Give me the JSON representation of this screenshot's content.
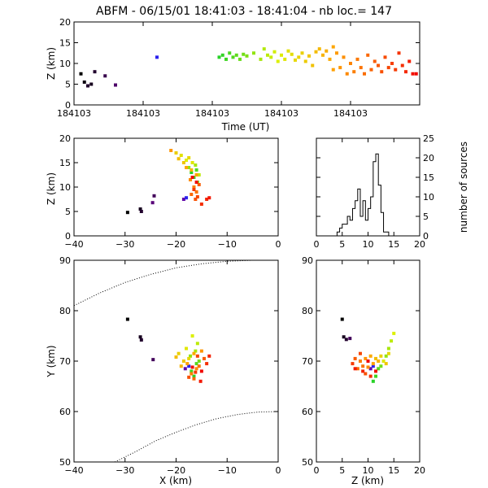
{
  "title": "ABFM - 06/15/01 18:41:03 - 18:41:04 - nb loc.=     147",
  "chart_data": [
    {
      "id": "time-panel",
      "type": "scatter",
      "xlabel": "Time (UT)",
      "ylabel": "Z (km)",
      "xlim": [
        0,
        1
      ],
      "ylim": [
        0,
        20
      ],
      "xticks": [
        0,
        0.2,
        0.4,
        0.6,
        0.8
      ],
      "xtick_labels": [
        "184103",
        "184103",
        "184103",
        "184103",
        "184103"
      ],
      "yticks": [
        0,
        5,
        10,
        15,
        20
      ],
      "ytick_labels": [
        "0",
        "5",
        "10",
        "15",
        "20"
      ],
      "color_by": "time",
      "points": [
        {
          "x": 0.02,
          "y": 7.5,
          "t": 0.0
        },
        {
          "x": 0.03,
          "y": 5.5,
          "t": 0.01
        },
        {
          "x": 0.05,
          "y": 5.0,
          "t": 0.02
        },
        {
          "x": 0.06,
          "y": 8.0,
          "t": 0.03
        },
        {
          "x": 0.04,
          "y": 4.6,
          "t": 0.03
        },
        {
          "x": 0.09,
          "y": 7.0,
          "t": 0.05
        },
        {
          "x": 0.12,
          "y": 4.8,
          "t": 0.07
        },
        {
          "x": 0.24,
          "y": 11.5,
          "t": 0.2
        },
        {
          "x": 0.42,
          "y": 11.5,
          "t": 0.38
        },
        {
          "x": 0.43,
          "y": 12.0,
          "t": 0.39
        },
        {
          "x": 0.44,
          "y": 11.0,
          "t": 0.4
        },
        {
          "x": 0.45,
          "y": 12.5,
          "t": 0.41
        },
        {
          "x": 0.46,
          "y": 11.5,
          "t": 0.42
        },
        {
          "x": 0.47,
          "y": 12.0,
          "t": 0.43
        },
        {
          "x": 0.48,
          "y": 11.0,
          "t": 0.44
        },
        {
          "x": 0.49,
          "y": 12.2,
          "t": 0.45
        },
        {
          "x": 0.5,
          "y": 11.8,
          "t": 0.46
        },
        {
          "x": 0.52,
          "y": 12.5,
          "t": 0.48
        },
        {
          "x": 0.54,
          "y": 11.0,
          "t": 0.5
        },
        {
          "x": 0.55,
          "y": 13.5,
          "t": 0.51
        },
        {
          "x": 0.56,
          "y": 12.0,
          "t": 0.52
        },
        {
          "x": 0.57,
          "y": 11.5,
          "t": 0.53
        },
        {
          "x": 0.58,
          "y": 12.8,
          "t": 0.54
        },
        {
          "x": 0.59,
          "y": 10.5,
          "t": 0.55
        },
        {
          "x": 0.6,
          "y": 12.0,
          "t": 0.56
        },
        {
          "x": 0.61,
          "y": 11.0,
          "t": 0.57
        },
        {
          "x": 0.62,
          "y": 13.0,
          "t": 0.58
        },
        {
          "x": 0.63,
          "y": 12.2,
          "t": 0.59
        },
        {
          "x": 0.64,
          "y": 10.8,
          "t": 0.6
        },
        {
          "x": 0.65,
          "y": 11.5,
          "t": 0.61
        },
        {
          "x": 0.66,
          "y": 12.5,
          "t": 0.62
        },
        {
          "x": 0.67,
          "y": 10.5,
          "t": 0.63
        },
        {
          "x": 0.68,
          "y": 11.8,
          "t": 0.64
        },
        {
          "x": 0.69,
          "y": 9.5,
          "t": 0.65
        },
        {
          "x": 0.7,
          "y": 12.8,
          "t": 0.66
        },
        {
          "x": 0.71,
          "y": 13.5,
          "t": 0.67
        },
        {
          "x": 0.72,
          "y": 12.0,
          "t": 0.68
        },
        {
          "x": 0.73,
          "y": 13.0,
          "t": 0.69
        },
        {
          "x": 0.74,
          "y": 11.0,
          "t": 0.7
        },
        {
          "x": 0.75,
          "y": 14.0,
          "t": 0.71
        },
        {
          "x": 0.75,
          "y": 8.5,
          "t": 0.72
        },
        {
          "x": 0.76,
          "y": 12.5,
          "t": 0.73
        },
        {
          "x": 0.77,
          "y": 9.0,
          "t": 0.74
        },
        {
          "x": 0.78,
          "y": 11.5,
          "t": 0.75
        },
        {
          "x": 0.79,
          "y": 7.5,
          "t": 0.76
        },
        {
          "x": 0.8,
          "y": 10.0,
          "t": 0.77
        },
        {
          "x": 0.81,
          "y": 8.0,
          "t": 0.78
        },
        {
          "x": 0.82,
          "y": 11.0,
          "t": 0.79
        },
        {
          "x": 0.83,
          "y": 9.0,
          "t": 0.8
        },
        {
          "x": 0.84,
          "y": 7.5,
          "t": 0.81
        },
        {
          "x": 0.85,
          "y": 12.0,
          "t": 0.82
        },
        {
          "x": 0.86,
          "y": 8.5,
          "t": 0.83
        },
        {
          "x": 0.87,
          "y": 10.5,
          "t": 0.84
        },
        {
          "x": 0.88,
          "y": 9.5,
          "t": 0.85
        },
        {
          "x": 0.89,
          "y": 8.0,
          "t": 0.86
        },
        {
          "x": 0.9,
          "y": 11.5,
          "t": 0.87
        },
        {
          "x": 0.91,
          "y": 9.0,
          "t": 0.88
        },
        {
          "x": 0.92,
          "y": 10.0,
          "t": 0.89
        },
        {
          "x": 0.93,
          "y": 8.5,
          "t": 0.9
        },
        {
          "x": 0.94,
          "y": 12.5,
          "t": 0.91
        },
        {
          "x": 0.95,
          "y": 9.5,
          "t": 0.92
        },
        {
          "x": 0.96,
          "y": 8.0,
          "t": 0.93
        },
        {
          "x": 0.97,
          "y": 10.5,
          "t": 0.95
        },
        {
          "x": 0.98,
          "y": 7.5,
          "t": 0.97
        },
        {
          "x": 0.99,
          "y": 7.5,
          "t": 0.99
        }
      ]
    },
    {
      "id": "xz-panel",
      "type": "scatter",
      "xlabel": "",
      "ylabel": "Z (km)",
      "xlim": [
        -40,
        0
      ],
      "ylim": [
        0,
        20
      ],
      "xticks": [
        -40,
        -30,
        -20,
        -10,
        0
      ],
      "xtick_labels": [
        "−40",
        "−30",
        "−20",
        "−10",
        "0"
      ],
      "yticks": [
        0,
        5,
        10,
        15,
        20
      ],
      "ytick_labels": [
        "0",
        "5",
        "10",
        "15",
        "20"
      ],
      "points": [
        {
          "x": -29.5,
          "y": 4.8,
          "t": 0.0
        },
        {
          "x": -27.0,
          "y": 5.5,
          "t": 0.02
        },
        {
          "x": -26.8,
          "y": 5.0,
          "t": 0.03
        },
        {
          "x": -24.3,
          "y": 8.2,
          "t": 0.06
        },
        {
          "x": -24.6,
          "y": 6.8,
          "t": 0.08
        },
        {
          "x": -18.5,
          "y": 7.5,
          "t": 0.12
        },
        {
          "x": -18.0,
          "y": 7.8,
          "t": 0.2
        },
        {
          "x": -17.0,
          "y": 13.0,
          "t": 0.38
        },
        {
          "x": -16.5,
          "y": 12.0,
          "t": 0.4
        },
        {
          "x": -16.0,
          "y": 13.5,
          "t": 0.42
        },
        {
          "x": -15.8,
          "y": 11.0,
          "t": 0.45
        },
        {
          "x": -17.5,
          "y": 14.0,
          "t": 0.48
        },
        {
          "x": -16.2,
          "y": 14.5,
          "t": 0.5
        },
        {
          "x": -15.5,
          "y": 12.5,
          "t": 0.52
        },
        {
          "x": -18.0,
          "y": 15.5,
          "t": 0.55
        },
        {
          "x": -16.8,
          "y": 15.0,
          "t": 0.57
        },
        {
          "x": -19.0,
          "y": 16.5,
          "t": 0.58
        },
        {
          "x": -17.5,
          "y": 16.0,
          "t": 0.6
        },
        {
          "x": -20.0,
          "y": 17.0,
          "t": 0.62
        },
        {
          "x": -18.5,
          "y": 15.0,
          "t": 0.64
        },
        {
          "x": -19.5,
          "y": 15.8,
          "t": 0.66
        },
        {
          "x": -17.0,
          "y": 13.5,
          "t": 0.68
        },
        {
          "x": -18.0,
          "y": 14.0,
          "t": 0.7
        },
        {
          "x": -16.0,
          "y": 12.5,
          "t": 0.72
        },
        {
          "x": -21.0,
          "y": 17.5,
          "t": 0.74
        },
        {
          "x": -17.2,
          "y": 11.5,
          "t": 0.76
        },
        {
          "x": -16.5,
          "y": 10.0,
          "t": 0.78
        },
        {
          "x": -16.0,
          "y": 9.0,
          "t": 0.8
        },
        {
          "x": -17.0,
          "y": 8.5,
          "t": 0.82
        },
        {
          "x": -15.5,
          "y": 10.5,
          "t": 0.84
        },
        {
          "x": -16.2,
          "y": 7.5,
          "t": 0.86
        },
        {
          "x": -15.8,
          "y": 8.0,
          "t": 0.88
        },
        {
          "x": -16.5,
          "y": 9.5,
          "t": 0.9
        },
        {
          "x": -15.0,
          "y": 6.5,
          "t": 0.92
        },
        {
          "x": -14.0,
          "y": 7.5,
          "t": 0.94
        },
        {
          "x": -13.5,
          "y": 7.8,
          "t": 0.96
        },
        {
          "x": -16.0,
          "y": 11.0,
          "t": 0.98
        },
        {
          "x": -16.8,
          "y": 12.0,
          "t": 0.99
        }
      ]
    },
    {
      "id": "histogram-panel",
      "type": "bar",
      "xlabel": "",
      "ylabel": "number of sources",
      "xlim": [
        0,
        20
      ],
      "ylim": [
        0,
        25
      ],
      "xticks": [
        0,
        5,
        10,
        15,
        20
      ],
      "xtick_labels": [
        "0",
        "5",
        "10",
        "15",
        "20"
      ],
      "yticks": [
        0,
        5,
        10,
        15,
        20,
        25
      ],
      "ytick_labels": [
        "0",
        "5",
        "10",
        "15",
        "20",
        "25"
      ],
      "bin_edges": [
        4,
        4.5,
        5,
        5.5,
        6,
        6.5,
        7,
        7.5,
        8,
        8.5,
        9,
        9.5,
        10,
        10.5,
        11,
        11.5,
        12,
        12.5,
        13,
        13.5,
        14
      ],
      "counts": [
        1,
        2,
        3,
        3,
        5,
        4,
        7,
        9,
        12,
        5,
        9,
        4,
        7,
        10,
        19,
        21,
        13,
        6,
        1,
        1
      ]
    },
    {
      "id": "xy-panel",
      "type": "scatter",
      "xlabel": "X (km)",
      "ylabel": "Y (km)",
      "xlim": [
        -40,
        0
      ],
      "ylim": [
        50,
        90
      ],
      "xticks": [
        -40,
        -30,
        -20,
        -10,
        0
      ],
      "xtick_labels": [
        "−40",
        "−30",
        "−20",
        "−10",
        "0"
      ],
      "yticks": [
        50,
        60,
        70,
        80,
        90
      ],
      "ytick_labels": [
        "50",
        "60",
        "70",
        "80",
        "90"
      ],
      "reference_curves": [
        {
          "name": "upper",
          "x": [
            -40,
            -35,
            -30,
            -25,
            -20,
            -15,
            -10,
            -5,
            0
          ],
          "y": [
            81,
            83.5,
            85.6,
            87.2,
            88.5,
            89.3,
            89.8,
            90,
            90
          ]
        },
        {
          "name": "lower",
          "x": [
            -32,
            -28,
            -24,
            -20,
            -16,
            -12,
            -8,
            -4,
            0
          ],
          "y": [
            50,
            52,
            54.2,
            55.9,
            57.4,
            58.6,
            59.4,
            59.9,
            60
          ]
        }
      ],
      "points": [
        {
          "x": -29.5,
          "y": 78.3,
          "t": 0.0
        },
        {
          "x": -27.0,
          "y": 74.8,
          "t": 0.02
        },
        {
          "x": -26.8,
          "y": 74.2,
          "t": 0.03
        },
        {
          "x": -24.5,
          "y": 70.3,
          "t": 0.06
        },
        {
          "x": -18.2,
          "y": 68.5,
          "t": 0.12
        },
        {
          "x": -17.5,
          "y": 69.0,
          "t": 0.2
        },
        {
          "x": -16.5,
          "y": 67.0,
          "t": 0.38
        },
        {
          "x": -17.0,
          "y": 68.0,
          "t": 0.4
        },
        {
          "x": -16.0,
          "y": 69.5,
          "t": 0.42
        },
        {
          "x": -15.5,
          "y": 70.0,
          "t": 0.45
        },
        {
          "x": -17.2,
          "y": 71.0,
          "t": 0.48
        },
        {
          "x": -16.2,
          "y": 72.0,
          "t": 0.5
        },
        {
          "x": -15.8,
          "y": 73.5,
          "t": 0.52
        },
        {
          "x": -16.8,
          "y": 75.0,
          "t": 0.55
        },
        {
          "x": -18.0,
          "y": 72.5,
          "t": 0.57
        },
        {
          "x": -17.5,
          "y": 70.5,
          "t": 0.6
        },
        {
          "x": -19.5,
          "y": 71.5,
          "t": 0.62
        },
        {
          "x": -18.5,
          "y": 70.0,
          "t": 0.64
        },
        {
          "x": -20.0,
          "y": 70.8,
          "t": 0.66
        },
        {
          "x": -19.0,
          "y": 69.0,
          "t": 0.68
        },
        {
          "x": -16.5,
          "y": 71.5,
          "t": 0.7
        },
        {
          "x": -17.8,
          "y": 69.5,
          "t": 0.72
        },
        {
          "x": -15.0,
          "y": 72.0,
          "t": 0.74
        },
        {
          "x": -16.0,
          "y": 68.5,
          "t": 0.76
        },
        {
          "x": -17.0,
          "y": 67.5,
          "t": 0.78
        },
        {
          "x": -15.5,
          "y": 69.0,
          "t": 0.8
        },
        {
          "x": -16.5,
          "y": 66.5,
          "t": 0.82
        },
        {
          "x": -14.5,
          "y": 70.5,
          "t": 0.84
        },
        {
          "x": -17.5,
          "y": 66.8,
          "t": 0.86
        },
        {
          "x": -15.8,
          "y": 71.0,
          "t": 0.88
        },
        {
          "x": -16.2,
          "y": 67.8,
          "t": 0.9
        },
        {
          "x": -14.0,
          "y": 69.5,
          "t": 0.92
        },
        {
          "x": -13.5,
          "y": 71.0,
          "t": 0.94
        },
        {
          "x": -15.2,
          "y": 66.0,
          "t": 0.96
        },
        {
          "x": -16.8,
          "y": 68.8,
          "t": 0.98
        },
        {
          "x": -15.0,
          "y": 68.0,
          "t": 0.99
        }
      ]
    },
    {
      "id": "zy-panel",
      "type": "scatter",
      "xlabel": "Z (km)",
      "ylabel": "",
      "xlim": [
        0,
        20
      ],
      "ylim": [
        50,
        90
      ],
      "xticks": [
        0,
        5,
        10,
        15,
        20
      ],
      "xtick_labels": [
        "0",
        "5",
        "10",
        "15",
        "20"
      ],
      "yticks": [
        50,
        60,
        70,
        80,
        90
      ],
      "ytick_labels": [
        "50",
        "60",
        "70",
        "80",
        "90"
      ],
      "points": [
        {
          "x": 5.0,
          "y": 78.3,
          "t": 0.0
        },
        {
          "x": 5.3,
          "y": 74.8,
          "t": 0.02
        },
        {
          "x": 5.8,
          "y": 74.3,
          "t": 0.03
        },
        {
          "x": 6.5,
          "y": 74.5,
          "t": 0.06
        },
        {
          "x": 10.5,
          "y": 68.5,
          "t": 0.12
        },
        {
          "x": 11.0,
          "y": 69.0,
          "t": 0.2
        },
        {
          "x": 11.0,
          "y": 66.0,
          "t": 0.38
        },
        {
          "x": 11.5,
          "y": 67.0,
          "t": 0.4
        },
        {
          "x": 12.0,
          "y": 68.5,
          "t": 0.42
        },
        {
          "x": 12.5,
          "y": 69.0,
          "t": 0.45
        },
        {
          "x": 13.5,
          "y": 71.0,
          "t": 0.48
        },
        {
          "x": 14.0,
          "y": 72.5,
          "t": 0.5
        },
        {
          "x": 14.5,
          "y": 74.0,
          "t": 0.52
        },
        {
          "x": 15.0,
          "y": 75.5,
          "t": 0.55
        },
        {
          "x": 13.0,
          "y": 70.0,
          "t": 0.57
        },
        {
          "x": 14.0,
          "y": 71.5,
          "t": 0.6
        },
        {
          "x": 12.5,
          "y": 71.0,
          "t": 0.62
        },
        {
          "x": 13.5,
          "y": 69.5,
          "t": 0.64
        },
        {
          "x": 11.5,
          "y": 70.5,
          "t": 0.66
        },
        {
          "x": 12.0,
          "y": 70.0,
          "t": 0.68
        },
        {
          "x": 10.5,
          "y": 71.0,
          "t": 0.7
        },
        {
          "x": 11.0,
          "y": 69.5,
          "t": 0.72
        },
        {
          "x": 9.5,
          "y": 70.5,
          "t": 0.74
        },
        {
          "x": 10.0,
          "y": 68.8,
          "t": 0.76
        },
        {
          "x": 8.5,
          "y": 70.0,
          "t": 0.78
        },
        {
          "x": 9.0,
          "y": 69.0,
          "t": 0.8
        },
        {
          "x": 8.0,
          "y": 68.5,
          "t": 0.82
        },
        {
          "x": 7.5,
          "y": 70.5,
          "t": 0.84
        },
        {
          "x": 9.5,
          "y": 67.5,
          "t": 0.86
        },
        {
          "x": 8.5,
          "y": 71.5,
          "t": 0.88
        },
        {
          "x": 7.0,
          "y": 69.5,
          "t": 0.9
        },
        {
          "x": 10.5,
          "y": 67.0,
          "t": 0.92
        },
        {
          "x": 9.0,
          "y": 68.0,
          "t": 0.94
        },
        {
          "x": 7.5,
          "y": 68.5,
          "t": 0.96
        },
        {
          "x": 11.5,
          "y": 68.0,
          "t": 0.98
        },
        {
          "x": 10.0,
          "y": 70.0,
          "t": 0.99
        }
      ]
    }
  ]
}
